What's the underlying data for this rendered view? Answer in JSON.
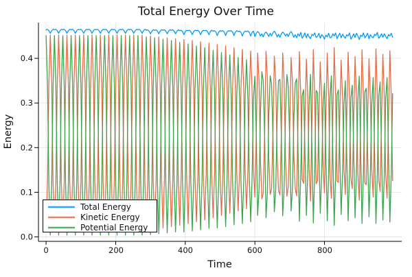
{
  "chart_data": {
    "type": "line",
    "title": "Total Energy Over Time",
    "xlabel": "Time",
    "ylabel": "Energy",
    "xlim": [
      -22,
      1022
    ],
    "ylim": [
      -0.01,
      0.48
    ],
    "xticks": [
      0,
      200,
      400,
      600,
      800
    ],
    "xtick_labels": [
      "0",
      "200",
      "400",
      "600",
      "800"
    ],
    "yticks": [
      0.0,
      0.1,
      0.2,
      0.3,
      0.4
    ],
    "ytick_labels": [
      "0.0",
      "0.1",
      "0.2",
      "0.3",
      "0.4"
    ],
    "grid": true,
    "legend_position": "bottom-left",
    "background_color": "#FFFFFF",
    "grid_color": "#E4E4E4",
    "axis_color": "#000000",
    "x_start": 0,
    "x_step": 4,
    "x_end": 996,
    "series": [
      {
        "name": "Total Energy",
        "color": "#009AFA",
        "values": [
          0.464,
          0.465,
          0.462,
          0.456,
          0.462,
          0.465,
          0.464,
          0.465,
          0.462,
          0.456,
          0.462,
          0.465,
          0.464,
          0.465,
          0.462,
          0.456,
          0.462,
          0.465,
          0.464,
          0.465,
          0.462,
          0.456,
          0.462,
          0.465,
          0.464,
          0.465,
          0.462,
          0.456,
          0.462,
          0.465,
          0.464,
          0.465,
          0.462,
          0.456,
          0.462,
          0.465,
          0.464,
          0.465,
          0.462,
          0.456,
          0.462,
          0.465,
          0.464,
          0.465,
          0.462,
          0.456,
          0.462,
          0.465,
          0.464,
          0.465,
          0.462,
          0.456,
          0.462,
          0.465,
          0.464,
          0.465,
          0.462,
          0.456,
          0.462,
          0.465,
          0.464,
          0.465,
          0.462,
          0.456,
          0.462,
          0.465,
          0.464,
          0.465,
          0.462,
          0.456,
          0.462,
          0.465,
          0.463,
          0.464,
          0.461,
          0.455,
          0.461,
          0.464,
          0.463,
          0.464,
          0.461,
          0.455,
          0.461,
          0.464,
          0.463,
          0.464,
          0.461,
          0.455,
          0.461,
          0.464,
          0.463,
          0.464,
          0.461,
          0.455,
          0.461,
          0.464,
          0.462,
          0.463,
          0.46,
          0.453,
          0.46,
          0.463,
          0.462,
          0.463,
          0.46,
          0.453,
          0.46,
          0.463,
          0.462,
          0.463,
          0.46,
          0.453,
          0.46,
          0.463,
          0.462,
          0.463,
          0.46,
          0.453,
          0.46,
          0.463,
          0.461,
          0.462,
          0.459,
          0.451,
          0.459,
          0.462,
          0.461,
          0.462,
          0.459,
          0.451,
          0.459,
          0.462,
          0.461,
          0.462,
          0.459,
          0.451,
          0.459,
          0.462,
          0.46,
          0.461,
          0.458,
          0.45,
          0.458,
          0.461,
          0.46,
          0.461,
          0.458,
          0.45,
          0.458,
          0.461,
          0.449,
          0.456,
          0.46,
          0.457,
          0.45,
          0.455,
          0.448,
          0.456,
          0.459,
          0.455,
          0.449,
          0.456,
          0.45,
          0.457,
          0.461,
          0.456,
          0.448,
          0.454,
          0.447,
          0.455,
          0.459,
          0.456,
          0.45,
          0.455,
          0.449,
          0.456,
          0.46,
          0.455,
          0.447,
          0.453,
          0.446,
          0.455,
          0.45,
          0.458,
          0.445,
          0.45,
          0.457,
          0.446,
          0.455,
          0.448,
          0.444,
          0.454,
          0.451,
          0.457,
          0.447,
          0.449,
          0.456,
          0.445,
          0.453,
          0.45,
          0.443,
          0.452,
          0.448,
          0.456,
          0.446,
          0.447,
          0.455,
          0.45,
          0.457,
          0.444,
          0.451,
          0.456,
          0.446,
          0.454,
          0.449,
          0.445,
          0.453,
          0.45,
          0.457,
          0.443,
          0.448,
          0.455,
          0.447,
          0.456,
          0.45,
          0.442,
          0.452,
          0.449,
          0.457,
          0.446,
          0.45,
          0.456,
          0.444,
          0.453,
          0.448,
          0.446,
          0.454,
          0.451,
          0.458,
          0.445,
          0.449,
          0.455,
          0.447,
          0.455,
          0.449,
          0.444,
          0.453,
          0.45,
          0.456,
          0.447
        ]
      },
      {
        "name": "Kinetic Energy",
        "color": "#E26E47",
        "values": [
          0.013,
          0.123,
          0.342,
          0.452,
          0.342,
          0.123,
          0.013,
          0.123,
          0.342,
          0.452,
          0.342,
          0.123,
          0.013,
          0.123,
          0.342,
          0.452,
          0.342,
          0.123,
          0.013,
          0.123,
          0.342,
          0.452,
          0.342,
          0.123,
          0.013,
          0.123,
          0.342,
          0.452,
          0.342,
          0.123,
          0.013,
          0.123,
          0.342,
          0.452,
          0.342,
          0.123,
          0.013,
          0.123,
          0.342,
          0.452,
          0.342,
          0.123,
          0.013,
          0.123,
          0.342,
          0.452,
          0.342,
          0.123,
          0.013,
          0.123,
          0.342,
          0.452,
          0.342,
          0.123,
          0.013,
          0.123,
          0.342,
          0.452,
          0.342,
          0.123,
          0.013,
          0.123,
          0.342,
          0.452,
          0.342,
          0.123,
          0.013,
          0.123,
          0.342,
          0.452,
          0.342,
          0.123,
          0.015,
          0.124,
          0.341,
          0.45,
          0.341,
          0.124,
          0.017,
          0.125,
          0.34,
          0.448,
          0.34,
          0.125,
          0.02,
          0.127,
          0.34,
          0.446,
          0.34,
          0.127,
          0.023,
          0.128,
          0.339,
          0.444,
          0.339,
          0.128,
          0.026,
          0.13,
          0.338,
          0.442,
          0.338,
          0.13,
          0.03,
          0.133,
          0.338,
          0.44,
          0.338,
          0.133,
          0.034,
          0.135,
          0.336,
          0.437,
          0.336,
          0.135,
          0.038,
          0.137,
          0.335,
          0.434,
          0.335,
          0.137,
          0.043,
          0.14,
          0.334,
          0.431,
          0.334,
          0.14,
          0.048,
          0.143,
          0.333,
          0.428,
          0.333,
          0.143,
          0.053,
          0.146,
          0.331,
          0.424,
          0.331,
          0.146,
          0.058,
          0.149,
          0.33,
          0.42,
          0.33,
          0.149,
          0.063,
          0.151,
          0.328,
          0.416,
          0.328,
          0.151,
          0.089,
          0.223,
          0.412,
          0.35,
          0.171,
          0.085,
          0.098,
          0.23,
          0.416,
          0.355,
          0.179,
          0.095,
          0.107,
          0.231,
          0.405,
          0.348,
          0.183,
          0.104,
          0.094,
          0.226,
          0.412,
          0.351,
          0.175,
          0.091,
          0.112,
          0.233,
          0.402,
          0.347,
          0.186,
          0.109,
          0.092,
          0.262,
          0.415,
          0.313,
          0.129,
          0.12,
          0.266,
          0.398,
          0.31,
          0.152,
          0.08,
          0.259,
          0.42,
          0.313,
          0.119,
          0.126,
          0.266,
          0.392,
          0.308,
          0.157,
          0.099,
          0.264,
          0.412,
          0.313,
          0.135,
          0.086,
          0.264,
          0.424,
          0.317,
          0.125,
          0.122,
          0.266,
          0.396,
          0.31,
          0.154,
          0.095,
          0.263,
          0.414,
          0.313,
          0.132,
          0.108,
          0.264,
          0.404,
          0.31,
          0.142,
          0.082,
          0.259,
          0.419,
          0.313,
          0.121,
          0.117,
          0.265,
          0.399,
          0.31,
          0.15,
          0.089,
          0.264,
          0.421,
          0.316,
          0.128,
          0.102,
          0.264,
          0.409,
          0.312,
          0.138,
          0.087,
          0.261,
          0.417,
          0.313,
          0.126
        ]
      },
      {
        "name": "Potential Energy",
        "color": "#3DA44E",
        "values": [
          0.451,
          0.342,
          0.12,
          0.004,
          0.12,
          0.342,
          0.451,
          0.342,
          0.12,
          0.004,
          0.12,
          0.342,
          0.451,
          0.342,
          0.12,
          0.004,
          0.12,
          0.342,
          0.451,
          0.342,
          0.12,
          0.004,
          0.12,
          0.342,
          0.451,
          0.342,
          0.12,
          0.004,
          0.12,
          0.342,
          0.451,
          0.342,
          0.12,
          0.004,
          0.12,
          0.342,
          0.451,
          0.342,
          0.12,
          0.004,
          0.12,
          0.342,
          0.451,
          0.342,
          0.12,
          0.004,
          0.12,
          0.342,
          0.451,
          0.342,
          0.12,
          0.004,
          0.12,
          0.342,
          0.451,
          0.342,
          0.12,
          0.004,
          0.12,
          0.342,
          0.451,
          0.342,
          0.12,
          0.004,
          0.12,
          0.342,
          0.451,
          0.342,
          0.12,
          0.004,
          0.12,
          0.342,
          0.448,
          0.34,
          0.12,
          0.005,
          0.12,
          0.34,
          0.446,
          0.339,
          0.121,
          0.007,
          0.121,
          0.339,
          0.443,
          0.337,
          0.121,
          0.009,
          0.121,
          0.337,
          0.44,
          0.336,
          0.122,
          0.011,
          0.122,
          0.336,
          0.436,
          0.333,
          0.122,
          0.011,
          0.122,
          0.333,
          0.432,
          0.33,
          0.122,
          0.013,
          0.122,
          0.33,
          0.428,
          0.328,
          0.124,
          0.016,
          0.124,
          0.328,
          0.424,
          0.326,
          0.125,
          0.019,
          0.125,
          0.326,
          0.418,
          0.322,
          0.125,
          0.02,
          0.125,
          0.322,
          0.413,
          0.319,
          0.126,
          0.023,
          0.126,
          0.319,
          0.408,
          0.316,
          0.128,
          0.027,
          0.128,
          0.316,
          0.402,
          0.312,
          0.128,
          0.03,
          0.128,
          0.312,
          0.397,
          0.31,
          0.13,
          0.034,
          0.13,
          0.31,
          0.36,
          0.233,
          0.048,
          0.107,
          0.279,
          0.37,
          0.35,
          0.226,
          0.043,
          0.1,
          0.27,
          0.361,
          0.343,
          0.226,
          0.056,
          0.108,
          0.265,
          0.35,
          0.353,
          0.229,
          0.047,
          0.105,
          0.275,
          0.364,
          0.337,
          0.223,
          0.058,
          0.108,
          0.261,
          0.344,
          0.354,
          0.193,
          0.035,
          0.145,
          0.316,
          0.33,
          0.191,
          0.048,
          0.145,
          0.296,
          0.364,
          0.195,
          0.031,
          0.144,
          0.328,
          0.323,
          0.19,
          0.053,
          0.145,
          0.293,
          0.344,
          0.188,
          0.036,
          0.143,
          0.311,
          0.361,
          0.191,
          0.026,
          0.14,
          0.319,
          0.329,
          0.19,
          0.05,
          0.144,
          0.295,
          0.35,
          0.19,
          0.036,
          0.144,
          0.311,
          0.34,
          0.191,
          0.043,
          0.146,
          0.308,
          0.36,
          0.193,
          0.03,
          0.144,
          0.325,
          0.333,
          0.191,
          0.045,
          0.143,
          0.298,
          0.357,
          0.19,
          0.03,
          0.142,
          0.317,
          0.347,
          0.191,
          0.038,
          0.143,
          0.311,
          0.357,
          0.192,
          0.033,
          0.143,
          0.321
        ]
      }
    ]
  }
}
